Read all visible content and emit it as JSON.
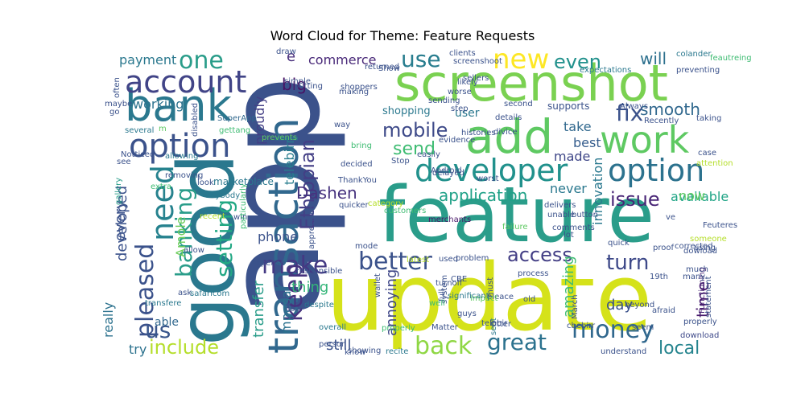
{
  "chart_data": {
    "type": "word-cloud",
    "title": "Word Cloud for Theme: Feature Requests",
    "words": [
      {
        "text": "app",
        "color": "#3b528b"
      },
      {
        "text": "feature",
        "color": "#2a9d8a"
      },
      {
        "text": "update",
        "color": "#d5e21a"
      },
      {
        "text": "good",
        "color": "#2a788e"
      },
      {
        "text": "screenshot",
        "color": "#7ad151"
      },
      {
        "text": "transaction",
        "color": "#31688e"
      },
      {
        "text": "bank",
        "color": "#2a788e"
      },
      {
        "text": "add",
        "color": "#5ec962"
      },
      {
        "text": "work",
        "color": "#5ec962"
      },
      {
        "text": "developer",
        "color": "#21918c"
      },
      {
        "text": "option",
        "color": "#2c728e"
      },
      {
        "text": "option",
        "color": "#3b528b"
      },
      {
        "text": "account",
        "color": "#414487"
      },
      {
        "text": "money",
        "color": "#31688e"
      },
      {
        "text": "make",
        "color": "#443983"
      },
      {
        "text": "better",
        "color": "#3b528b"
      },
      {
        "text": "need",
        "color": "#26828e"
      },
      {
        "text": "new",
        "color": "#fde725"
      },
      {
        "text": "one",
        "color": "#2a9d8a"
      },
      {
        "text": "use",
        "color": "#287d8e"
      },
      {
        "text": "mobile",
        "color": "#3e4a89"
      },
      {
        "text": "fix",
        "color": "#3b528b"
      },
      {
        "text": "keep",
        "color": "#46337e"
      },
      {
        "text": "include",
        "color": "#b5de2b"
      },
      {
        "text": "back",
        "color": "#8fd744"
      },
      {
        "text": "great",
        "color": "#2c728e"
      },
      {
        "text": "access",
        "color": "#433e85"
      },
      {
        "text": "pleased",
        "color": "#3b528b"
      },
      {
        "text": "banking",
        "color": "#2a9d8a"
      },
      {
        "text": "us",
        "color": "#39568c"
      },
      {
        "text": "setting",
        "color": "#22a884"
      },
      {
        "text": "turn",
        "color": "#3e4989"
      },
      {
        "text": "application",
        "color": "#1fa187"
      },
      {
        "text": "issue",
        "color": "#482576"
      },
      {
        "text": "smooth",
        "color": "#31688e"
      },
      {
        "text": "send",
        "color": "#3fbc73"
      },
      {
        "text": "Ethiopian",
        "color": "#433e85"
      },
      {
        "text": "Dashen",
        "color": "#46327e"
      },
      {
        "text": "even",
        "color": "#21918c"
      },
      {
        "text": "will",
        "color": "#2d708e"
      },
      {
        "text": "e",
        "color": "#472d7b"
      },
      {
        "text": "commerce",
        "color": "#482878"
      },
      {
        "text": "big",
        "color": "#471365"
      },
      {
        "text": "local",
        "color": "#25848e"
      },
      {
        "text": "time",
        "color": "#481b6d"
      },
      {
        "text": "available",
        "color": "#20a486"
      },
      {
        "text": "take",
        "color": "#31688e"
      },
      {
        "text": "best",
        "color": "#365d8d"
      },
      {
        "text": "made",
        "color": "#3f4788"
      },
      {
        "text": "never",
        "color": "#2a788e"
      },
      {
        "text": "payment",
        "color": "#2a788e"
      },
      {
        "text": "working",
        "color": "#2c728e"
      },
      {
        "text": "proudly",
        "color": "#433e85"
      },
      {
        "text": "telebirr",
        "color": "#287d8e"
      },
      {
        "text": "mpesa",
        "color": "#2c728e"
      },
      {
        "text": "phone",
        "color": "#3b528b"
      },
      {
        "text": "transfer",
        "color": "#2a9d8a"
      },
      {
        "text": "thing",
        "color": "#34b679"
      },
      {
        "text": "still",
        "color": "#3b528b"
      },
      {
        "text": "annoying",
        "color": "#3f4788"
      },
      {
        "text": "amazing",
        "color": "#3fbc73"
      },
      {
        "text": "day",
        "color": "#3b528b"
      },
      {
        "text": "innovation",
        "color": "#2a788e"
      },
      {
        "text": "now",
        "color": "#5ec962"
      },
      {
        "text": "user",
        "color": "#2a788e"
      },
      {
        "text": "every",
        "color": "#3b528b"
      },
      {
        "text": "developed",
        "color": "#3b528b"
      },
      {
        "text": "really",
        "color": "#2c728e"
      },
      {
        "text": "able",
        "color": "#31688e"
      },
      {
        "text": "try",
        "color": "#2c728e"
      },
      {
        "text": "Amole",
        "color": "#6ccd5a"
      },
      {
        "text": "shopping",
        "color": "#2a788e"
      },
      {
        "text": "marketplace",
        "color": "#2a788e"
      },
      {
        "text": "supports",
        "color": "#3b528b"
      },
      {
        "text": "Recently",
        "color": "#3b528b"
      },
      {
        "text": "merchants",
        "color": "#481668"
      },
      {
        "text": "Android",
        "color": "#3b528b"
      },
      {
        "text": "download",
        "color": "#3e4989"
      },
      {
        "text": "statement",
        "color": "#3b528b"
      },
      {
        "text": "Functioning",
        "color": "#482475"
      },
      {
        "text": "SuperApp",
        "color": "#31688e"
      },
      {
        "text": "ThankYou",
        "color": "#3b528b"
      },
      {
        "text": "expectations",
        "color": "#2a788e"
      },
      {
        "text": "colander",
        "color": "#2a788e"
      },
      {
        "text": "sellers",
        "color": "#3b528b"
      },
      {
        "text": "preventing",
        "color": "#3b528b"
      },
      {
        "text": "Always",
        "color": "#3b528b"
      },
      {
        "text": "taking",
        "color": "#3b528b"
      },
      {
        "text": "maybe",
        "color": "#3b528b"
      },
      {
        "text": "several",
        "color": "#2a788e"
      },
      {
        "text": "m",
        "color": "#5ec962"
      },
      {
        "text": "gettang",
        "color": "#3fbc73"
      },
      {
        "text": "prevents",
        "color": "#5ec962"
      },
      {
        "text": "Notticed",
        "color": "#3b528b"
      },
      {
        "text": "allowing",
        "color": "#2a788e"
      },
      {
        "text": "removing",
        "color": "#3b528b"
      },
      {
        "text": "gallery",
        "color": "#2a9d8a"
      },
      {
        "text": "extra",
        "color": "#3fbc73"
      },
      {
        "text": "anybody",
        "color": "#2a788e"
      },
      {
        "text": "look",
        "color": "#3b528b"
      },
      {
        "text": "win",
        "color": "#3b528b"
      },
      {
        "text": "particularly",
        "color": "#3fbc73"
      },
      {
        "text": "allow",
        "color": "#3b528b"
      },
      {
        "text": "recent",
        "color": "#b5de2b"
      },
      {
        "text": "ask",
        "color": "#3b528b"
      },
      {
        "text": "safaricom",
        "color": "#2a788e"
      },
      {
        "text": "transfere",
        "color": "#2a788e"
      },
      {
        "text": "responsible",
        "color": "#3b528b"
      },
      {
        "text": "appreciate",
        "color": "#3b528b"
      },
      {
        "text": "coz",
        "color": "#3b528b"
      },
      {
        "text": "despite",
        "color": "#2a788e"
      },
      {
        "text": "expense",
        "color": "#3b528b"
      },
      {
        "text": "overall",
        "color": "#2a788e"
      },
      {
        "text": "properly",
        "color": "#3fbc73"
      },
      {
        "text": "person",
        "color": "#3b528b"
      },
      {
        "text": "know",
        "color": "#3b528b"
      },
      {
        "text": "showing",
        "color": "#3b528b"
      },
      {
        "text": "recite",
        "color": "#2a788e"
      },
      {
        "text": "Matter",
        "color": "#3b528b"
      },
      {
        "text": "sent",
        "color": "#2a788e"
      },
      {
        "text": "telebir",
        "color": "#3b528b"
      },
      {
        "text": "cbebirr",
        "color": "#3b528b"
      },
      {
        "text": "March",
        "color": "#3b528b"
      },
      {
        "text": "understand",
        "color": "#3b528b"
      },
      {
        "text": "properly",
        "color": "#3b528b"
      },
      {
        "text": "seem",
        "color": "#3b528b"
      },
      {
        "text": "afraid",
        "color": "#3b528b"
      },
      {
        "text": "beyond",
        "color": "#3b528b"
      },
      {
        "text": "19th",
        "color": "#3b528b"
      },
      {
        "text": "proof",
        "color": "#3b528b"
      },
      {
        "text": "many",
        "color": "#3b528b"
      },
      {
        "text": "much",
        "color": "#3b528b"
      },
      {
        "text": "using",
        "color": "#3b528b"
      },
      {
        "text": "dowload",
        "color": "#3b528b"
      },
      {
        "text": "corrected",
        "color": "#3b528b"
      },
      {
        "text": "someone",
        "color": "#b5de2b"
      },
      {
        "text": "Feuteres",
        "color": "#3b528b"
      },
      {
        "text": "ve",
        "color": "#3b528b"
      },
      {
        "text": "quick",
        "color": "#3b528b"
      },
      {
        "text": "lot",
        "color": "#3b528b"
      },
      {
        "text": "unable",
        "color": "#3b528b"
      },
      {
        "text": "button",
        "color": "#3b528b"
      },
      {
        "text": "failure",
        "color": "#5ec962"
      },
      {
        "text": "old",
        "color": "#3b528b"
      },
      {
        "text": "must",
        "color": "#3b528b"
      },
      {
        "text": "process",
        "color": "#3b528b"
      },
      {
        "text": "Otter",
        "color": "#3b528b"
      },
      {
        "text": "pleace",
        "color": "#3b528b"
      },
      {
        "text": "full",
        "color": "#3b528b"
      },
      {
        "text": "impact",
        "color": "#5ec962"
      },
      {
        "text": "significant",
        "color": "#2a788e"
      },
      {
        "text": "system",
        "color": "#3b528b"
      },
      {
        "text": "well",
        "color": "#3fbc73"
      },
      {
        "text": "guys",
        "color": "#3b528b"
      },
      {
        "text": "problem",
        "color": "#3b528b"
      },
      {
        "text": "used",
        "color": "#3b528b"
      },
      {
        "text": "CBE",
        "color": "#3b528b"
      },
      {
        "text": "latest",
        "color": "#b5de2b"
      },
      {
        "text": "wallet",
        "color": "#3b528b"
      },
      {
        "text": "turnoff",
        "color": "#3b528b"
      },
      {
        "text": "mode",
        "color": "#3b528b"
      },
      {
        "text": "quicker",
        "color": "#3b528b"
      },
      {
        "text": "category",
        "color": "#b5de2b"
      },
      {
        "text": "customers",
        "color": "#3fbc73"
      },
      {
        "text": "worst",
        "color": "#3b528b"
      },
      {
        "text": "comments",
        "color": "#3b528b"
      },
      {
        "text": "delivers",
        "color": "#3b528b"
      },
      {
        "text": "evidence",
        "color": "#3b528b"
      },
      {
        "text": "delayed",
        "color": "#3b528b"
      },
      {
        "text": "easily",
        "color": "#3b528b"
      },
      {
        "text": "bring",
        "color": "#3fbc73"
      },
      {
        "text": "Stop",
        "color": "#3b528b"
      },
      {
        "text": "decided",
        "color": "#3b528b"
      },
      {
        "text": "step",
        "color": "#3b528b"
      },
      {
        "text": "sending",
        "color": "#3b528b"
      },
      {
        "text": "histories",
        "color": "#3b528b"
      },
      {
        "text": "second",
        "color": "#3b528b"
      },
      {
        "text": "divice",
        "color": "#3b528b"
      },
      {
        "text": "details",
        "color": "#3b528b"
      },
      {
        "text": "making",
        "color": "#3b528b"
      },
      {
        "text": "shoppers",
        "color": "#3b528b"
      },
      {
        "text": "simple",
        "color": "#3b528b"
      },
      {
        "text": "way",
        "color": "#3b528b"
      },
      {
        "text": "likely",
        "color": "#3b528b"
      },
      {
        "text": "worse",
        "color": "#3b528b"
      },
      {
        "text": "clients",
        "color": "#3b528b"
      },
      {
        "text": "screenshoot",
        "color": "#3b528b"
      },
      {
        "text": "Show",
        "color": "#3b528b"
      },
      {
        "text": "returned",
        "color": "#3b528b"
      },
      {
        "text": "putting",
        "color": "#3b528b"
      },
      {
        "text": "draw",
        "color": "#3b528b"
      },
      {
        "text": "often",
        "color": "#3b528b"
      },
      {
        "text": "go",
        "color": "#3b528b"
      },
      {
        "text": "see",
        "color": "#3b528b"
      },
      {
        "text": "l",
        "color": "#3b528b"
      },
      {
        "text": "case",
        "color": "#3b528b"
      },
      {
        "text": "attention",
        "color": "#b5de2b"
      },
      {
        "text": "feautreing",
        "color": "#3fbc73"
      },
      {
        "text": "disabled",
        "color": "#3b528b"
      }
    ]
  }
}
